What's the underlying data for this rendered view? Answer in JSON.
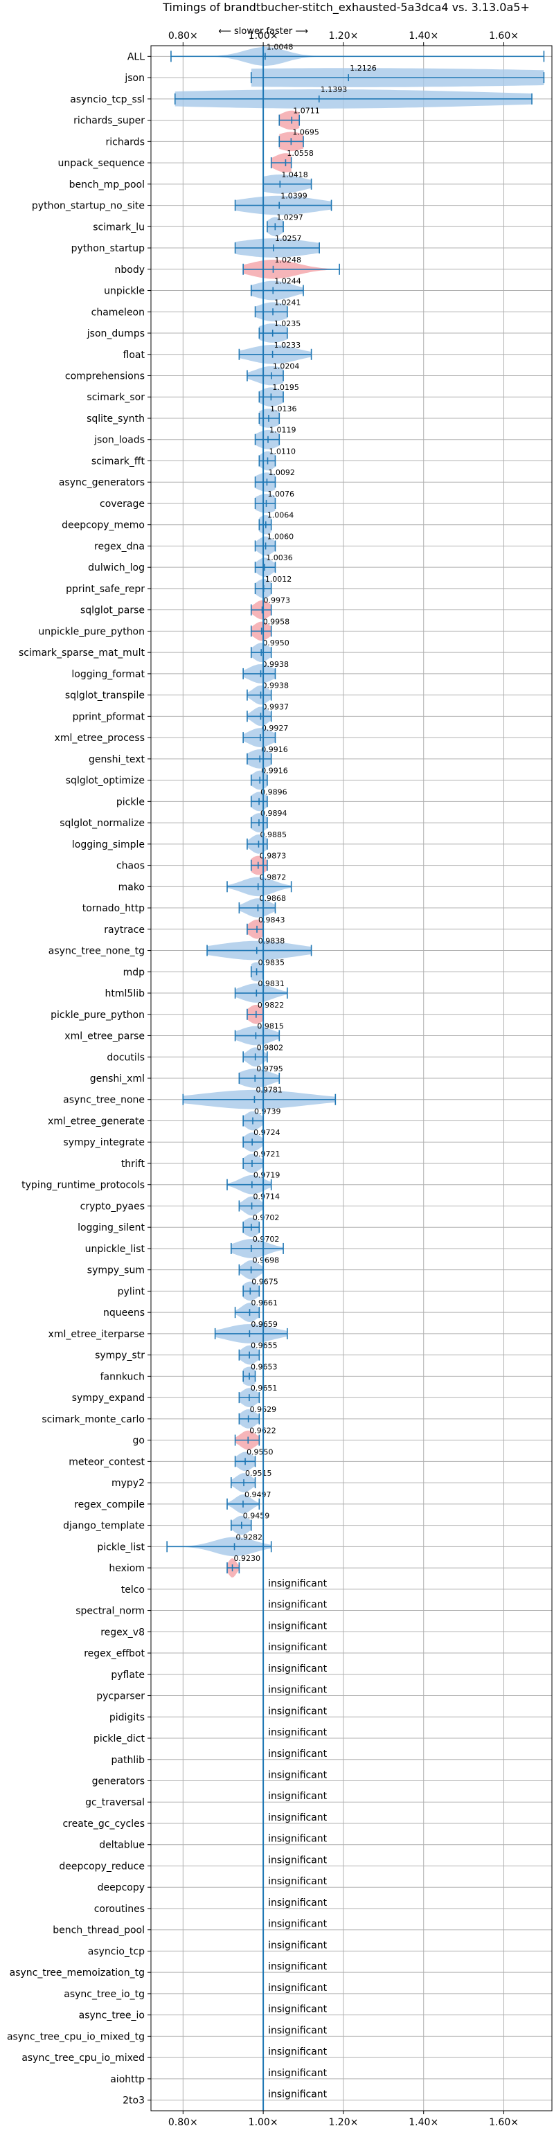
{
  "chart_data": {
    "type": "violin",
    "title": "Timings of brandtbucher-stitch_exhausted-5a3dca4 vs. 3.13.0a5+",
    "direction_note": "⟵ slower   faster ⟶",
    "xlim": [
      0.72,
      1.72
    ],
    "xticks": [
      0.8,
      1.0,
      1.2,
      1.4,
      1.6
    ],
    "xtick_labels": [
      "0.80×",
      "1.00×",
      "1.20×",
      "1.40×",
      "1.60×"
    ],
    "grid": true,
    "reference_line": 1.0,
    "insignificant_label": "insignificant",
    "colors": {
      "normal": "#a6c8e8",
      "highlight": "#f4a3a8",
      "line": "#1f77b4",
      "grid": "#b0b0b0"
    },
    "benchmarks": [
      {
        "name": "ALL",
        "median": 1.0048,
        "min": 0.77,
        "max": 1.7,
        "spread": 0.05,
        "highlight": false
      },
      {
        "name": "json",
        "median": 1.2126,
        "min": 0.97,
        "max": 1.7,
        "spread": 0.7,
        "highlight": false
      },
      {
        "name": "asyncio_tcp_ssl",
        "median": 1.1393,
        "min": 0.78,
        "max": 1.67,
        "spread": 0.5,
        "highlight": false
      },
      {
        "name": "richards_super",
        "median": 1.0711,
        "min": 1.04,
        "max": 1.09,
        "spread": 0.03,
        "highlight": true
      },
      {
        "name": "richards",
        "median": 1.0695,
        "min": 1.04,
        "max": 1.1,
        "spread": 0.04,
        "highlight": true
      },
      {
        "name": "unpack_sequence",
        "median": 1.0558,
        "min": 1.02,
        "max": 1.07,
        "spread": 0.03,
        "highlight": true
      },
      {
        "name": "bench_mp_pool",
        "median": 1.0418,
        "min": 1.0,
        "max": 1.12,
        "spread": 0.06,
        "highlight": false
      },
      {
        "name": "python_startup_no_site",
        "median": 1.0399,
        "min": 0.93,
        "max": 1.17,
        "spread": 0.1,
        "highlight": false
      },
      {
        "name": "scimark_lu",
        "median": 1.0297,
        "min": 1.01,
        "max": 1.05,
        "spread": 0.02,
        "highlight": false
      },
      {
        "name": "python_startup",
        "median": 1.0257,
        "min": 0.93,
        "max": 1.14,
        "spread": 0.1,
        "highlight": false
      },
      {
        "name": "nbody",
        "median": 1.0248,
        "min": 0.95,
        "max": 1.19,
        "spread": 0.06,
        "highlight": true
      },
      {
        "name": "unpickle",
        "median": 1.0244,
        "min": 0.97,
        "max": 1.1,
        "spread": 0.05,
        "highlight": false
      },
      {
        "name": "chameleon",
        "median": 1.0241,
        "min": 0.98,
        "max": 1.06,
        "spread": 0.04,
        "highlight": false
      },
      {
        "name": "json_dumps",
        "median": 1.0235,
        "min": 0.99,
        "max": 1.06,
        "spread": 0.04,
        "highlight": false
      },
      {
        "name": "float",
        "median": 1.0233,
        "min": 0.94,
        "max": 1.12,
        "spread": 0.06,
        "highlight": false
      },
      {
        "name": "comprehensions",
        "median": 1.0204,
        "min": 0.96,
        "max": 1.05,
        "spread": 0.04,
        "highlight": false
      },
      {
        "name": "scimark_sor",
        "median": 1.0195,
        "min": 0.99,
        "max": 1.05,
        "spread": 0.03,
        "highlight": false
      },
      {
        "name": "sqlite_synth",
        "median": 1.0136,
        "min": 0.99,
        "max": 1.04,
        "spread": 0.03,
        "highlight": false
      },
      {
        "name": "json_loads",
        "median": 1.0119,
        "min": 0.98,
        "max": 1.04,
        "spread": 0.03,
        "highlight": false
      },
      {
        "name": "scimark_fft",
        "median": 1.011,
        "min": 0.99,
        "max": 1.03,
        "spread": 0.02,
        "highlight": false
      },
      {
        "name": "async_generators",
        "median": 1.0092,
        "min": 0.98,
        "max": 1.03,
        "spread": 0.03,
        "highlight": false
      },
      {
        "name": "coverage",
        "median": 1.0076,
        "min": 0.98,
        "max": 1.03,
        "spread": 0.03,
        "highlight": false
      },
      {
        "name": "deepcopy_memo",
        "median": 1.0064,
        "min": 0.99,
        "max": 1.02,
        "spread": 0.02,
        "highlight": false
      },
      {
        "name": "regex_dna",
        "median": 1.006,
        "min": 0.98,
        "max": 1.03,
        "spread": 0.02,
        "highlight": false
      },
      {
        "name": "dulwich_log",
        "median": 1.0036,
        "min": 0.98,
        "max": 1.03,
        "spread": 0.02,
        "highlight": false
      },
      {
        "name": "pprint_safe_repr",
        "median": 1.0012,
        "min": 0.98,
        "max": 1.02,
        "spread": 0.02,
        "highlight": false
      },
      {
        "name": "sqlglot_parse",
        "median": 0.9973,
        "min": 0.97,
        "max": 1.02,
        "spread": 0.02,
        "highlight": true
      },
      {
        "name": "unpickle_pure_python",
        "median": 0.9958,
        "min": 0.97,
        "max": 1.02,
        "spread": 0.02,
        "highlight": true
      },
      {
        "name": "scimark_sparse_mat_mult",
        "median": 0.995,
        "min": 0.97,
        "max": 1.02,
        "spread": 0.02,
        "highlight": false
      },
      {
        "name": "logging_format",
        "median": 0.9938,
        "min": 0.95,
        "max": 1.03,
        "spread": 0.03,
        "highlight": false
      },
      {
        "name": "sqlglot_transpile",
        "median": 0.9938,
        "min": 0.96,
        "max": 1.02,
        "spread": 0.02,
        "highlight": false
      },
      {
        "name": "pprint_pformat",
        "median": 0.9937,
        "min": 0.96,
        "max": 1.02,
        "spread": 0.02,
        "highlight": false
      },
      {
        "name": "xml_etree_process",
        "median": 0.9927,
        "min": 0.95,
        "max": 1.03,
        "spread": 0.03,
        "highlight": false
      },
      {
        "name": "genshi_text",
        "median": 0.9916,
        "min": 0.96,
        "max": 1.02,
        "spread": 0.03,
        "highlight": false
      },
      {
        "name": "sqlglot_optimize",
        "median": 0.9916,
        "min": 0.97,
        "max": 1.01,
        "spread": 0.02,
        "highlight": false
      },
      {
        "name": "pickle",
        "median": 0.9896,
        "min": 0.97,
        "max": 1.01,
        "spread": 0.02,
        "highlight": false
      },
      {
        "name": "sqlglot_normalize",
        "median": 0.9894,
        "min": 0.97,
        "max": 1.01,
        "spread": 0.02,
        "highlight": false
      },
      {
        "name": "logging_simple",
        "median": 0.9885,
        "min": 0.96,
        "max": 1.01,
        "spread": 0.02,
        "highlight": false
      },
      {
        "name": "chaos",
        "median": 0.9873,
        "min": 0.97,
        "max": 1.01,
        "spread": 0.02,
        "highlight": true
      },
      {
        "name": "mako",
        "median": 0.9872,
        "min": 0.91,
        "max": 1.07,
        "spread": 0.04,
        "highlight": false
      },
      {
        "name": "tornado_http",
        "median": 0.9868,
        "min": 0.94,
        "max": 1.03,
        "spread": 0.03,
        "highlight": false
      },
      {
        "name": "raytrace",
        "median": 0.9843,
        "min": 0.96,
        "max": 1.0,
        "spread": 0.02,
        "highlight": true
      },
      {
        "name": "async_tree_none_tg",
        "median": 0.9838,
        "min": 0.86,
        "max": 1.12,
        "spread": 0.1,
        "highlight": false
      },
      {
        "name": "mdp",
        "median": 0.9835,
        "min": 0.97,
        "max": 1.0,
        "spread": 0.02,
        "highlight": false
      },
      {
        "name": "html5lib",
        "median": 0.9831,
        "min": 0.93,
        "max": 1.06,
        "spread": 0.04,
        "highlight": false
      },
      {
        "name": "pickle_pure_python",
        "median": 0.9822,
        "min": 0.96,
        "max": 1.0,
        "spread": 0.02,
        "highlight": true
      },
      {
        "name": "xml_etree_parse",
        "median": 0.9815,
        "min": 0.93,
        "max": 1.04,
        "spread": 0.04,
        "highlight": false
      },
      {
        "name": "docutils",
        "median": 0.9802,
        "min": 0.95,
        "max": 1.01,
        "spread": 0.02,
        "highlight": false
      },
      {
        "name": "genshi_xml",
        "median": 0.9795,
        "min": 0.94,
        "max": 1.04,
        "spread": 0.04,
        "highlight": false
      },
      {
        "name": "async_tree_none",
        "median": 0.9781,
        "min": 0.8,
        "max": 1.18,
        "spread": 0.13,
        "highlight": false
      },
      {
        "name": "xml_etree_generate",
        "median": 0.9739,
        "min": 0.95,
        "max": 1.0,
        "spread": 0.02,
        "highlight": false
      },
      {
        "name": "sympy_integrate",
        "median": 0.9724,
        "min": 0.95,
        "max": 1.0,
        "spread": 0.02,
        "highlight": false
      },
      {
        "name": "thrift",
        "median": 0.9721,
        "min": 0.95,
        "max": 1.0,
        "spread": 0.02,
        "highlight": false
      },
      {
        "name": "typing_runtime_protocols",
        "median": 0.9719,
        "min": 0.91,
        "max": 1.02,
        "spread": 0.03,
        "highlight": false
      },
      {
        "name": "crypto_pyaes",
        "median": 0.9714,
        "min": 0.94,
        "max": 1.0,
        "spread": 0.02,
        "highlight": false
      },
      {
        "name": "logging_silent",
        "median": 0.9702,
        "min": 0.95,
        "max": 0.99,
        "spread": 0.02,
        "highlight": false
      },
      {
        "name": "unpickle_list",
        "median": 0.9702,
        "min": 0.92,
        "max": 1.05,
        "spread": 0.04,
        "highlight": false
      },
      {
        "name": "sympy_sum",
        "median": 0.9698,
        "min": 0.94,
        "max": 1.0,
        "spread": 0.02,
        "highlight": false
      },
      {
        "name": "pylint",
        "median": 0.9675,
        "min": 0.95,
        "max": 0.99,
        "spread": 0.02,
        "highlight": false
      },
      {
        "name": "nqueens",
        "median": 0.9661,
        "min": 0.93,
        "max": 0.99,
        "spread": 0.02,
        "highlight": false
      },
      {
        "name": "xml_etree_iterparse",
        "median": 0.9659,
        "min": 0.88,
        "max": 1.06,
        "spread": 0.06,
        "highlight": false
      },
      {
        "name": "sympy_str",
        "median": 0.9655,
        "min": 0.94,
        "max": 0.99,
        "spread": 0.02,
        "highlight": false
      },
      {
        "name": "fannkuch",
        "median": 0.9653,
        "min": 0.95,
        "max": 0.98,
        "spread": 0.02,
        "highlight": false
      },
      {
        "name": "sympy_expand",
        "median": 0.9651,
        "min": 0.94,
        "max": 0.99,
        "spread": 0.02,
        "highlight": false
      },
      {
        "name": "scimark_monte_carlo",
        "median": 0.9629,
        "min": 0.94,
        "max": 0.99,
        "spread": 0.02,
        "highlight": false
      },
      {
        "name": "go",
        "median": 0.9622,
        "min": 0.93,
        "max": 0.99,
        "spread": 0.02,
        "highlight": true
      },
      {
        "name": "meteor_contest",
        "median": 0.955,
        "min": 0.93,
        "max": 0.98,
        "spread": 0.02,
        "highlight": false
      },
      {
        "name": "mypy2",
        "median": 0.9515,
        "min": 0.92,
        "max": 0.98,
        "spread": 0.02,
        "highlight": false
      },
      {
        "name": "regex_compile",
        "median": 0.9497,
        "min": 0.91,
        "max": 0.99,
        "spread": 0.02,
        "highlight": false
      },
      {
        "name": "django_template",
        "median": 0.9459,
        "min": 0.92,
        "max": 0.97,
        "spread": 0.02,
        "highlight": false
      },
      {
        "name": "pickle_list",
        "median": 0.9282,
        "min": 0.76,
        "max": 1.02,
        "spread": 0.05,
        "highlight": false
      },
      {
        "name": "hexiom",
        "median": 0.923,
        "min": 0.91,
        "max": 0.94,
        "spread": 0.01,
        "highlight": true
      },
      {
        "name": "telco",
        "insignificant": true
      },
      {
        "name": "spectral_norm",
        "insignificant": true
      },
      {
        "name": "regex_v8",
        "insignificant": true
      },
      {
        "name": "regex_effbot",
        "insignificant": true
      },
      {
        "name": "pyflate",
        "insignificant": true
      },
      {
        "name": "pycparser",
        "insignificant": true
      },
      {
        "name": "pidigits",
        "insignificant": true
      },
      {
        "name": "pickle_dict",
        "insignificant": true
      },
      {
        "name": "pathlib",
        "insignificant": true
      },
      {
        "name": "generators",
        "insignificant": true
      },
      {
        "name": "gc_traversal",
        "insignificant": true
      },
      {
        "name": "create_gc_cycles",
        "insignificant": true
      },
      {
        "name": "deltablue",
        "insignificant": true
      },
      {
        "name": "deepcopy_reduce",
        "insignificant": true
      },
      {
        "name": "deepcopy",
        "insignificant": true
      },
      {
        "name": "coroutines",
        "insignificant": true
      },
      {
        "name": "bench_thread_pool",
        "insignificant": true
      },
      {
        "name": "asyncio_tcp",
        "insignificant": true
      },
      {
        "name": "async_tree_memoization_tg",
        "insignificant": true
      },
      {
        "name": "async_tree_io_tg",
        "insignificant": true
      },
      {
        "name": "async_tree_io",
        "insignificant": true
      },
      {
        "name": "async_tree_cpu_io_mixed_tg",
        "insignificant": true
      },
      {
        "name": "async_tree_cpu_io_mixed",
        "insignificant": true
      },
      {
        "name": "aiohttp",
        "insignificant": true
      },
      {
        "name": "2to3",
        "insignificant": true
      }
    ]
  }
}
